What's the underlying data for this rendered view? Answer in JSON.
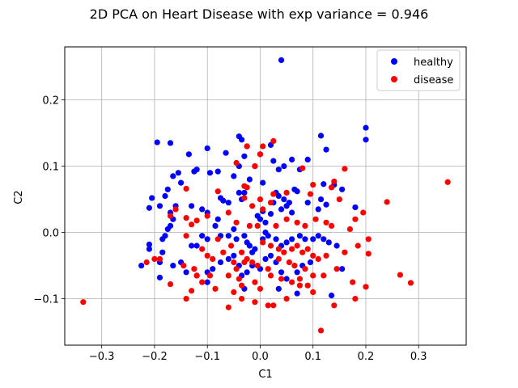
{
  "chart_data": {
    "type": "scatter",
    "title": "2D PCA on Heart Disease with exp variance = 0.946",
    "xlabel": "C1",
    "ylabel": "C2",
    "xlim": [
      -0.37,
      0.39
    ],
    "ylim": [
      -0.17,
      0.28
    ],
    "xticks": [
      -0.3,
      -0.2,
      -0.1,
      0.0,
      0.1,
      0.2,
      0.3
    ],
    "xtick_labels": [
      "−0.3",
      "−0.2",
      "−0.1",
      "0.0",
      "0.1",
      "0.2",
      "0.3"
    ],
    "yticks": [
      -0.1,
      0.0,
      0.1,
      0.2
    ],
    "ytick_labels": [
      "−0.1",
      "0.0",
      "0.1",
      "0.2"
    ],
    "grid": true,
    "legend_position": "top-right",
    "series": [
      {
        "name": "healthy",
        "color": "#0000ff",
        "points": [
          [
            0.04,
            0.26
          ],
          [
            0.2,
            0.158
          ],
          [
            0.2,
            0.14
          ],
          [
            0.115,
            0.146
          ],
          [
            0.125,
            0.125
          ],
          [
            -0.195,
            0.136
          ],
          [
            -0.17,
            0.135
          ],
          [
            -0.04,
            0.145
          ],
          [
            -0.035,
            0.14
          ],
          [
            -0.065,
            0.12
          ],
          [
            -0.135,
            0.118
          ],
          [
            -0.1,
            0.127
          ],
          [
            -0.025,
            0.13
          ],
          [
            -0.03,
            0.115
          ],
          [
            0.0,
            0.118
          ],
          [
            0.025,
            0.108
          ],
          [
            0.02,
            0.132
          ],
          [
            0.06,
            0.11
          ],
          [
            0.09,
            0.11
          ],
          [
            0.045,
            0.1
          ],
          [
            0.035,
            0.095
          ],
          [
            -0.155,
            0.09
          ],
          [
            -0.165,
            0.085
          ],
          [
            -0.12,
            0.095
          ],
          [
            -0.125,
            0.092
          ],
          [
            -0.08,
            0.092
          ],
          [
            -0.095,
            0.09
          ],
          [
            -0.05,
            0.085
          ],
          [
            -0.04,
            0.1
          ],
          [
            -0.01,
            0.1
          ],
          [
            0.075,
            0.095
          ],
          [
            0.12,
            0.073
          ],
          [
            0.14,
            0.072
          ],
          [
            0.155,
            0.065
          ],
          [
            -0.15,
            0.075
          ],
          [
            -0.175,
            0.065
          ],
          [
            -0.18,
            0.055
          ],
          [
            -0.205,
            0.052
          ],
          [
            -0.21,
            0.037
          ],
          [
            -0.19,
            0.04
          ],
          [
            -0.16,
            0.04
          ],
          [
            -0.13,
            0.04
          ],
          [
            -0.11,
            0.035
          ],
          [
            -0.075,
            0.052
          ],
          [
            -0.07,
            0.048
          ],
          [
            -0.06,
            0.045
          ],
          [
            -0.1,
            0.03
          ],
          [
            -0.04,
            0.06
          ],
          [
            -0.03,
            0.06
          ],
          [
            -0.035,
            0.05
          ],
          [
            -0.02,
            0.08
          ],
          [
            0.005,
            0.075
          ],
          [
            0.03,
            0.06
          ],
          [
            0.035,
            0.055
          ],
          [
            0.045,
            0.05
          ],
          [
            0.055,
            0.045
          ],
          [
            0.06,
            0.03
          ],
          [
            0.065,
            0.065
          ],
          [
            0.07,
            0.062
          ],
          [
            0.05,
            0.04
          ],
          [
            0.04,
            0.035
          ],
          [
            0.02,
            0.028
          ],
          [
            0.005,
            0.032
          ],
          [
            -0.005,
            0.025
          ],
          [
            0.0,
            0.02
          ],
          [
            0.01,
            0.015
          ],
          [
            0.025,
            0.045
          ],
          [
            0.09,
            0.045
          ],
          [
            0.11,
            0.035
          ],
          [
            0.115,
            0.05
          ],
          [
            0.125,
            0.042
          ],
          [
            0.18,
            0.038
          ],
          [
            -0.17,
            0.03
          ],
          [
            -0.165,
            0.02
          ],
          [
            -0.17,
            0.01
          ],
          [
            -0.175,
            0.005
          ],
          [
            -0.18,
            -0.005
          ],
          [
            -0.185,
            -0.01
          ],
          [
            -0.21,
            -0.018
          ],
          [
            -0.21,
            -0.025
          ],
          [
            -0.185,
            -0.03
          ],
          [
            -0.19,
            -0.045
          ],
          [
            -0.165,
            -0.05
          ],
          [
            -0.15,
            -0.045
          ],
          [
            -0.13,
            -0.02
          ],
          [
            -0.12,
            -0.02
          ],
          [
            -0.11,
            -0.005
          ],
          [
            -0.1,
            -0.01
          ],
          [
            -0.085,
            0.01
          ],
          [
            -0.08,
            0.02
          ],
          [
            -0.075,
            -0.005
          ],
          [
            -0.06,
            -0.005
          ],
          [
            -0.05,
            0.005
          ],
          [
            -0.045,
            -0.01
          ],
          [
            -0.03,
            -0.005
          ],
          [
            -0.025,
            -0.015
          ],
          [
            -0.02,
            -0.02
          ],
          [
            -0.015,
            -0.03
          ],
          [
            -0.01,
            -0.025
          ],
          [
            0.005,
            -0.01
          ],
          [
            0.01,
            0.0
          ],
          [
            0.015,
            -0.005
          ],
          [
            0.03,
            -0.01
          ],
          [
            0.04,
            -0.02
          ],
          [
            0.05,
            -0.015
          ],
          [
            0.06,
            -0.01
          ],
          [
            0.075,
            -0.005
          ],
          [
            0.085,
            -0.01
          ],
          [
            0.1,
            -0.01
          ],
          [
            0.11,
            -0.005
          ],
          [
            0.12,
            -0.01
          ],
          [
            0.13,
            -0.015
          ],
          [
            0.145,
            -0.02
          ],
          [
            -0.225,
            -0.05
          ],
          [
            -0.19,
            -0.068
          ],
          [
            -0.14,
            -0.06
          ],
          [
            -0.12,
            -0.065
          ],
          [
            -0.1,
            -0.06
          ],
          [
            -0.09,
            -0.055
          ],
          [
            -0.075,
            -0.045
          ],
          [
            -0.06,
            -0.04
          ],
          [
            -0.05,
            -0.035
          ],
          [
            -0.04,
            -0.05
          ],
          [
            -0.035,
            -0.065
          ],
          [
            -0.025,
            -0.06
          ],
          [
            -0.015,
            -0.05
          ],
          [
            0.0,
            -0.055
          ],
          [
            0.01,
            -0.04
          ],
          [
            0.02,
            -0.035
          ],
          [
            0.03,
            -0.045
          ],
          [
            0.04,
            -0.06
          ],
          [
            0.05,
            -0.07
          ],
          [
            0.07,
            -0.06
          ],
          [
            0.08,
            -0.05
          ],
          [
            0.095,
            -0.045
          ],
          [
            0.155,
            -0.055
          ],
          [
            -0.1,
            -0.075
          ],
          [
            -0.03,
            -0.085
          ],
          [
            0.035,
            -0.085
          ],
          [
            0.07,
            -0.092
          ],
          [
            0.135,
            -0.095
          ]
        ]
      },
      {
        "name": "disease",
        "color": "#ff0000",
        "points": [
          [
            0.355,
            0.076
          ],
          [
            0.24,
            0.046
          ],
          [
            0.265,
            -0.064
          ],
          [
            0.285,
            -0.076
          ],
          [
            -0.335,
            -0.105
          ],
          [
            0.115,
            -0.148
          ],
          [
            0.025,
            0.138
          ],
          [
            -0.045,
            0.105
          ],
          [
            -0.025,
            0.13
          ],
          [
            0.005,
            0.13
          ],
          [
            0.0,
            0.118
          ],
          [
            -0.01,
            0.1
          ],
          [
            0.08,
            0.097
          ],
          [
            0.16,
            0.096
          ],
          [
            0.14,
            0.077
          ],
          [
            0.135,
            0.068
          ],
          [
            0.1,
            0.072
          ],
          [
            -0.14,
            0.066
          ],
          [
            -0.08,
            0.062
          ],
          [
            -0.03,
            0.07
          ],
          [
            -0.025,
            0.068
          ],
          [
            0.0,
            0.05
          ],
          [
            0.025,
            0.058
          ],
          [
            0.05,
            0.06
          ],
          [
            0.095,
            0.058
          ],
          [
            0.15,
            0.05
          ],
          [
            -0.03,
            0.052
          ],
          [
            -0.015,
            0.04
          ],
          [
            0.005,
            0.035
          ],
          [
            0.02,
            0.045
          ],
          [
            -0.16,
            0.035
          ],
          [
            -0.14,
            0.022
          ],
          [
            -0.12,
            0.018
          ],
          [
            -0.17,
            0.025
          ],
          [
            -0.1,
            0.025
          ],
          [
            -0.06,
            0.03
          ],
          [
            -0.045,
            0.015
          ],
          [
            -0.02,
            0.01
          ],
          [
            -0.005,
            0.01
          ],
          [
            0.03,
            0.01
          ],
          [
            0.05,
            0.02
          ],
          [
            0.07,
            0.015
          ],
          [
            0.085,
            0.01
          ],
          [
            0.105,
            0.02
          ],
          [
            0.125,
            0.015
          ],
          [
            0.135,
            0.01
          ],
          [
            0.17,
            0.005
          ],
          [
            0.18,
            0.02
          ],
          [
            0.195,
            0.03
          ],
          [
            -0.13,
            0.012
          ],
          [
            -0.14,
            -0.005
          ],
          [
            -0.08,
            -0.01
          ],
          [
            -0.055,
            -0.02
          ],
          [
            -0.035,
            -0.03
          ],
          [
            -0.025,
            -0.04
          ],
          [
            -0.015,
            -0.045
          ],
          [
            0.005,
            -0.015
          ],
          [
            0.02,
            -0.02
          ],
          [
            0.035,
            -0.025
          ],
          [
            0.045,
            -0.03
          ],
          [
            0.06,
            -0.025
          ],
          [
            0.07,
            -0.02
          ],
          [
            0.08,
            -0.03
          ],
          [
            0.09,
            -0.025
          ],
          [
            0.1,
            -0.035
          ],
          [
            0.11,
            -0.04
          ],
          [
            0.125,
            -0.035
          ],
          [
            0.16,
            -0.03
          ],
          [
            0.185,
            -0.02
          ],
          [
            0.205,
            -0.01
          ],
          [
            0.205,
            -0.032
          ],
          [
            -0.11,
            -0.025
          ],
          [
            -0.1,
            -0.035
          ],
          [
            -0.09,
            -0.04
          ],
          [
            -0.07,
            -0.03
          ],
          [
            -0.05,
            -0.045
          ],
          [
            -0.045,
            -0.055
          ],
          [
            -0.03,
            -0.045
          ],
          [
            -0.005,
            -0.05
          ],
          [
            0.015,
            -0.055
          ],
          [
            0.035,
            -0.04
          ],
          [
            0.055,
            -0.045
          ],
          [
            0.065,
            -0.05
          ],
          [
            0.085,
            -0.055
          ],
          [
            0.1,
            -0.065
          ],
          [
            0.12,
            -0.065
          ],
          [
            0.145,
            -0.055
          ],
          [
            0.175,
            -0.075
          ],
          [
            0.2,
            -0.082
          ],
          [
            -0.215,
            -0.045
          ],
          [
            -0.2,
            -0.04
          ],
          [
            -0.145,
            -0.05
          ],
          [
            -0.125,
            -0.055
          ],
          [
            -0.12,
            -0.065
          ],
          [
            -0.11,
            -0.075
          ],
          [
            -0.095,
            -0.065
          ],
          [
            -0.06,
            -0.065
          ],
          [
            -0.04,
            -0.07
          ],
          [
            -0.035,
            -0.08
          ],
          [
            -0.01,
            -0.075
          ],
          [
            0.0,
            -0.085
          ],
          [
            0.02,
            -0.065
          ],
          [
            0.04,
            -0.07
          ],
          [
            0.06,
            -0.075
          ],
          [
            0.075,
            -0.07
          ],
          [
            0.09,
            -0.08
          ],
          [
            -0.17,
            -0.078
          ],
          [
            -0.13,
            -0.088
          ],
          [
            -0.14,
            -0.1
          ],
          [
            -0.085,
            -0.085
          ],
          [
            -0.05,
            -0.09
          ],
          [
            -0.035,
            -0.1
          ],
          [
            -0.01,
            -0.105
          ],
          [
            0.015,
            -0.11
          ],
          [
            0.025,
            -0.11
          ],
          [
            0.05,
            -0.1
          ],
          [
            0.075,
            -0.08
          ],
          [
            0.1,
            -0.09
          ],
          [
            0.14,
            -0.11
          ],
          [
            0.18,
            -0.1
          ],
          [
            -0.06,
            -0.113
          ],
          [
            -0.19,
            -0.04
          ]
        ]
      }
    ]
  }
}
